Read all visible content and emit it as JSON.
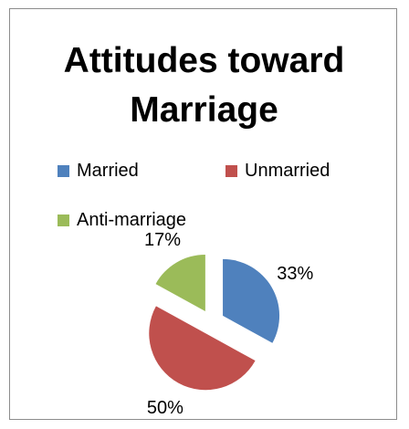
{
  "chart_data": {
    "type": "pie",
    "title": "Attitudes toward Marriage",
    "categories": [
      "Married",
      "Unmarried",
      "Anti-marriage"
    ],
    "values": [
      33,
      50,
      17
    ],
    "labels": [
      "33%",
      "50%",
      "17%"
    ],
    "colors": [
      "#4f81bd",
      "#c0504d",
      "#9bbb59"
    ],
    "exploded": true,
    "legend_position": "top"
  }
}
